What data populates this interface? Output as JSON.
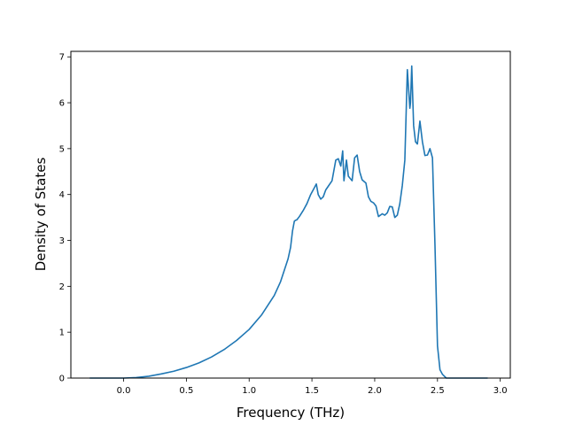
{
  "chart_data": {
    "type": "line",
    "title": "",
    "xlabel": "Frequency (THz)",
    "ylabel": "Density of States",
    "xlim": [
      -0.42,
      3.08
    ],
    "ylim": [
      0,
      7.12
    ],
    "xticks": [
      0.0,
      0.5,
      1.0,
      1.5,
      2.0,
      2.5,
      3.0
    ],
    "xtick_labels": [
      "0.0",
      "0.5",
      "1.0",
      "1.5",
      "2.0",
      "2.5",
      "3.0"
    ],
    "yticks": [
      0,
      1,
      2,
      3,
      4,
      5,
      6,
      7
    ],
    "ytick_labels": [
      "0",
      "1",
      "2",
      "3",
      "4",
      "5",
      "6",
      "7"
    ],
    "grid": false,
    "colors": {
      "line": "#1f77b4"
    },
    "series": [
      {
        "x": [
          -0.27,
          0.0,
          0.1,
          0.2,
          0.3,
          0.4,
          0.5,
          0.6,
          0.7,
          0.8,
          0.9,
          1.0,
          1.1,
          1.2,
          1.25,
          1.28,
          1.31,
          1.33,
          1.345,
          1.36,
          1.37,
          1.38,
          1.4,
          1.43,
          1.46,
          1.49,
          1.52,
          1.535,
          1.55,
          1.57,
          1.59,
          1.61,
          1.63,
          1.66,
          1.69,
          1.71,
          1.73,
          1.745,
          1.755,
          1.775,
          1.79,
          1.82,
          1.84,
          1.86,
          1.88,
          1.9,
          1.93,
          1.95,
          1.97,
          1.99,
          2.01,
          2.03,
          2.06,
          2.08,
          2.1,
          2.12,
          2.14,
          2.16,
          2.18,
          2.2,
          2.22,
          2.24,
          2.26,
          2.28,
          2.285,
          2.295,
          2.31,
          2.325,
          2.34,
          2.36,
          2.38,
          2.4,
          2.42,
          2.44,
          2.46,
          2.48,
          2.5,
          2.52,
          2.54,
          2.57,
          2.6,
          2.63,
          2.7,
          2.8,
          2.9
        ],
        "y": [
          0,
          0,
          0.01,
          0.04,
          0.09,
          0.15,
          0.23,
          0.33,
          0.46,
          0.62,
          0.82,
          1.06,
          1.38,
          1.8,
          2.1,
          2.35,
          2.6,
          2.85,
          3.2,
          3.42,
          3.44,
          3.45,
          3.52,
          3.65,
          3.8,
          4.0,
          4.15,
          4.23,
          4.0,
          3.9,
          3.95,
          4.1,
          4.18,
          4.3,
          4.75,
          4.78,
          4.62,
          4.95,
          4.3,
          4.75,
          4.4,
          4.3,
          4.8,
          4.86,
          4.5,
          4.32,
          4.25,
          3.95,
          3.85,
          3.82,
          3.75,
          3.52,
          3.58,
          3.55,
          3.6,
          3.74,
          3.73,
          3.5,
          3.55,
          3.8,
          4.2,
          4.75,
          6.72,
          5.88,
          6.0,
          6.8,
          5.5,
          5.15,
          5.1,
          5.6,
          5.15,
          4.85,
          4.86,
          5.0,
          4.8,
          2.9,
          0.7,
          0.18,
          0.08,
          0.0,
          0.0,
          0.0,
          0.0,
          0.0,
          0.0
        ]
      }
    ]
  }
}
